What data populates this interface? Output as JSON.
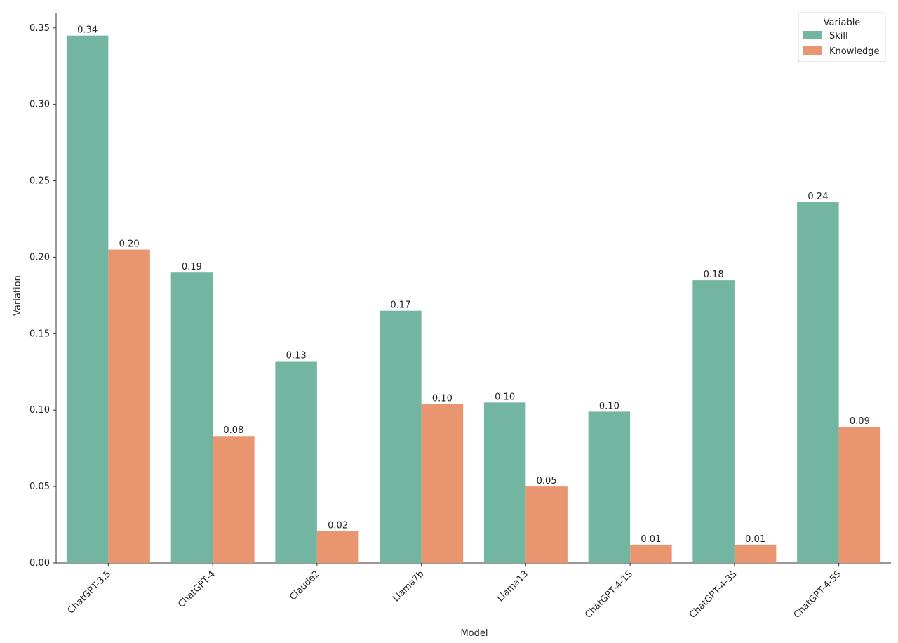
{
  "chart_data": {
    "type": "bar",
    "title": "",
    "xlabel": "Model",
    "ylabel": "Variation",
    "ylim": [
      0,
      0.36
    ],
    "yticks": [
      "0.00",
      "0.05",
      "0.10",
      "0.15",
      "0.20",
      "0.25",
      "0.30",
      "0.35"
    ],
    "categories": [
      "ChatGPT-3.5",
      "ChatGPT-4",
      "Claude2",
      "Llama7b",
      "Llama13",
      "ChatGPT-4-1S",
      "ChatGPT-4-3S",
      "ChatGPT-4-5S"
    ],
    "series": [
      {
        "name": "Skill",
        "color": "#72b6a1",
        "values": [
          0.345,
          0.19,
          0.132,
          0.165,
          0.105,
          0.099,
          0.185,
          0.236
        ],
        "labels": [
          "0.34",
          "0.19",
          "0.13",
          "0.17",
          "0.10",
          "0.10",
          "0.18",
          "0.24"
        ]
      },
      {
        "name": "Knowledge",
        "color": "#e9956f",
        "values": [
          0.205,
          0.083,
          0.021,
          0.104,
          0.05,
          0.012,
          0.012,
          0.089
        ],
        "labels": [
          "0.20",
          "0.08",
          "0.02",
          "0.10",
          "0.05",
          "0.01",
          "0.01",
          "0.09"
        ]
      }
    ],
    "legend": {
      "title": "Variable",
      "position": "top-right"
    },
    "grid": false
  }
}
